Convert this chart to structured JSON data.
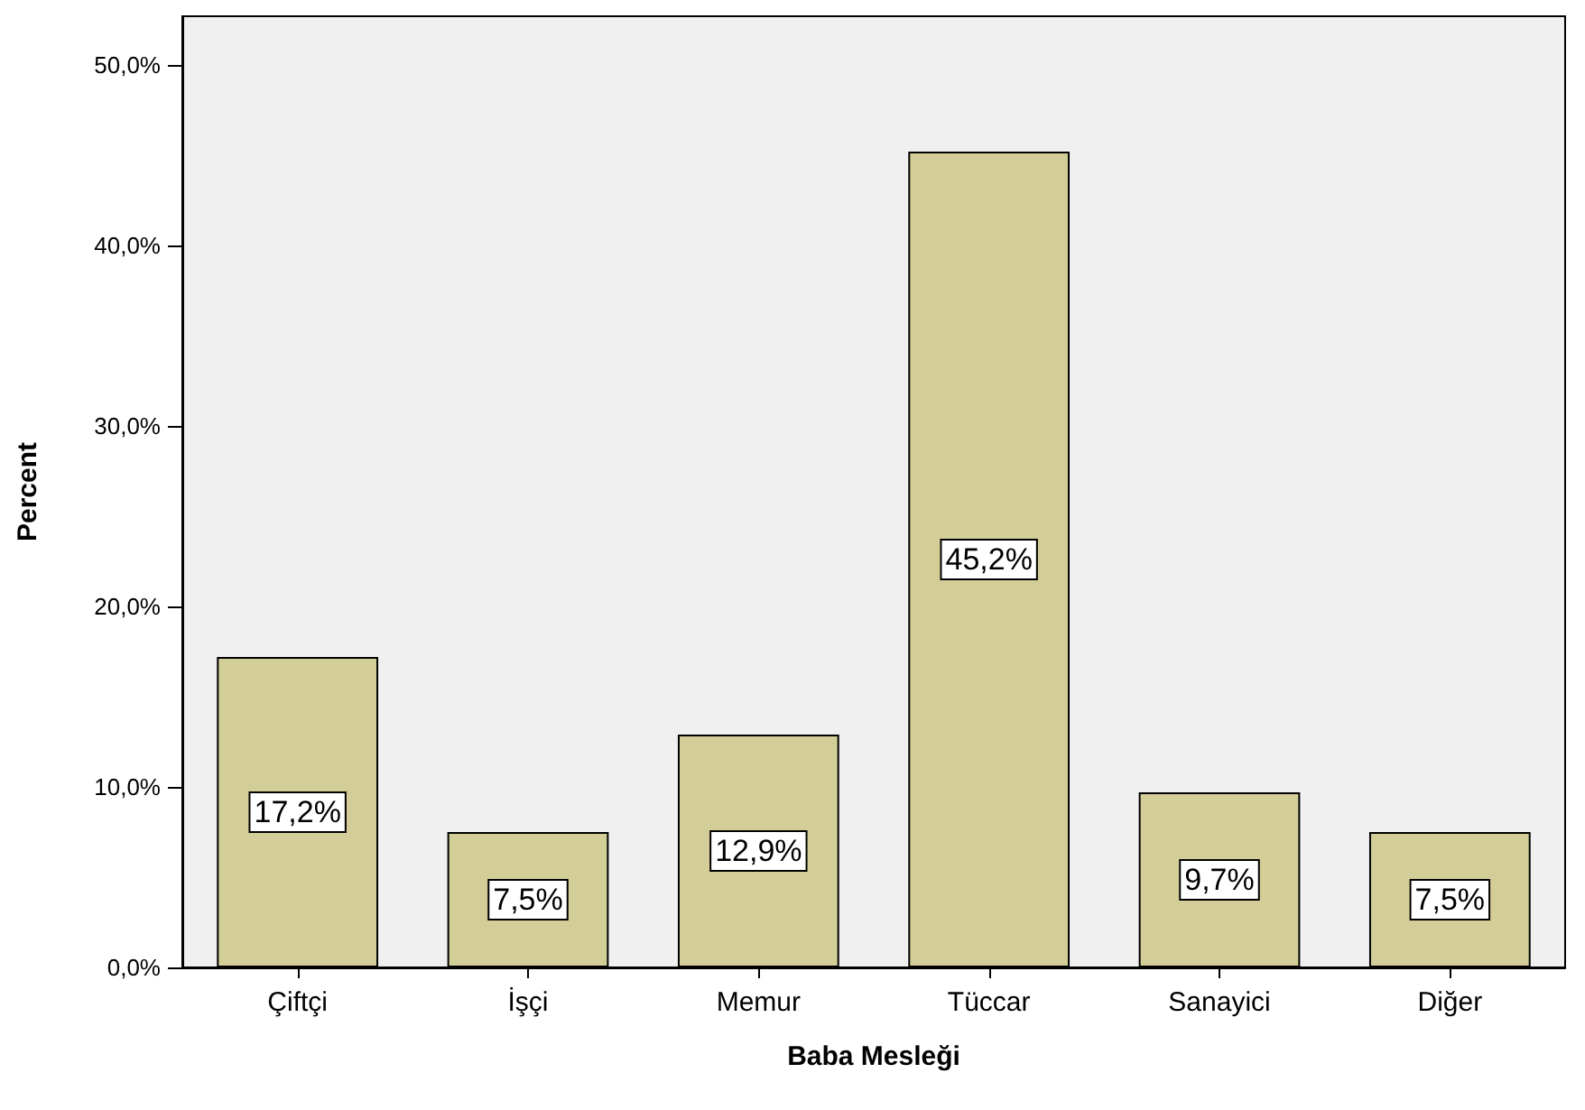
{
  "chart_data": {
    "type": "bar",
    "xlabel": "Baba Mesleği",
    "ylabel": "Percent",
    "categories": [
      "Çiftçi",
      "İşçi",
      "Memur",
      "Tüccar",
      "Sanayici",
      "Diğer"
    ],
    "values": [
      17.2,
      7.5,
      12.9,
      45.2,
      9.7,
      7.5
    ],
    "value_labels": [
      "17,2%",
      "7,5%",
      "12,9%",
      "45,2%",
      "9,7%",
      "7,5%"
    ],
    "color": "#d3ce97",
    "ylim": [
      0,
      52.7
    ],
    "yticks": [
      {
        "value": 0,
        "label": "0,0%"
      },
      {
        "value": 10,
        "label": "10,0%"
      },
      {
        "value": 20,
        "label": "20,0%"
      },
      {
        "value": 30,
        "label": "30,0%"
      },
      {
        "value": 40,
        "label": "40,0%"
      },
      {
        "value": 50,
        "label": "50,0%"
      }
    ],
    "grid": false
  }
}
